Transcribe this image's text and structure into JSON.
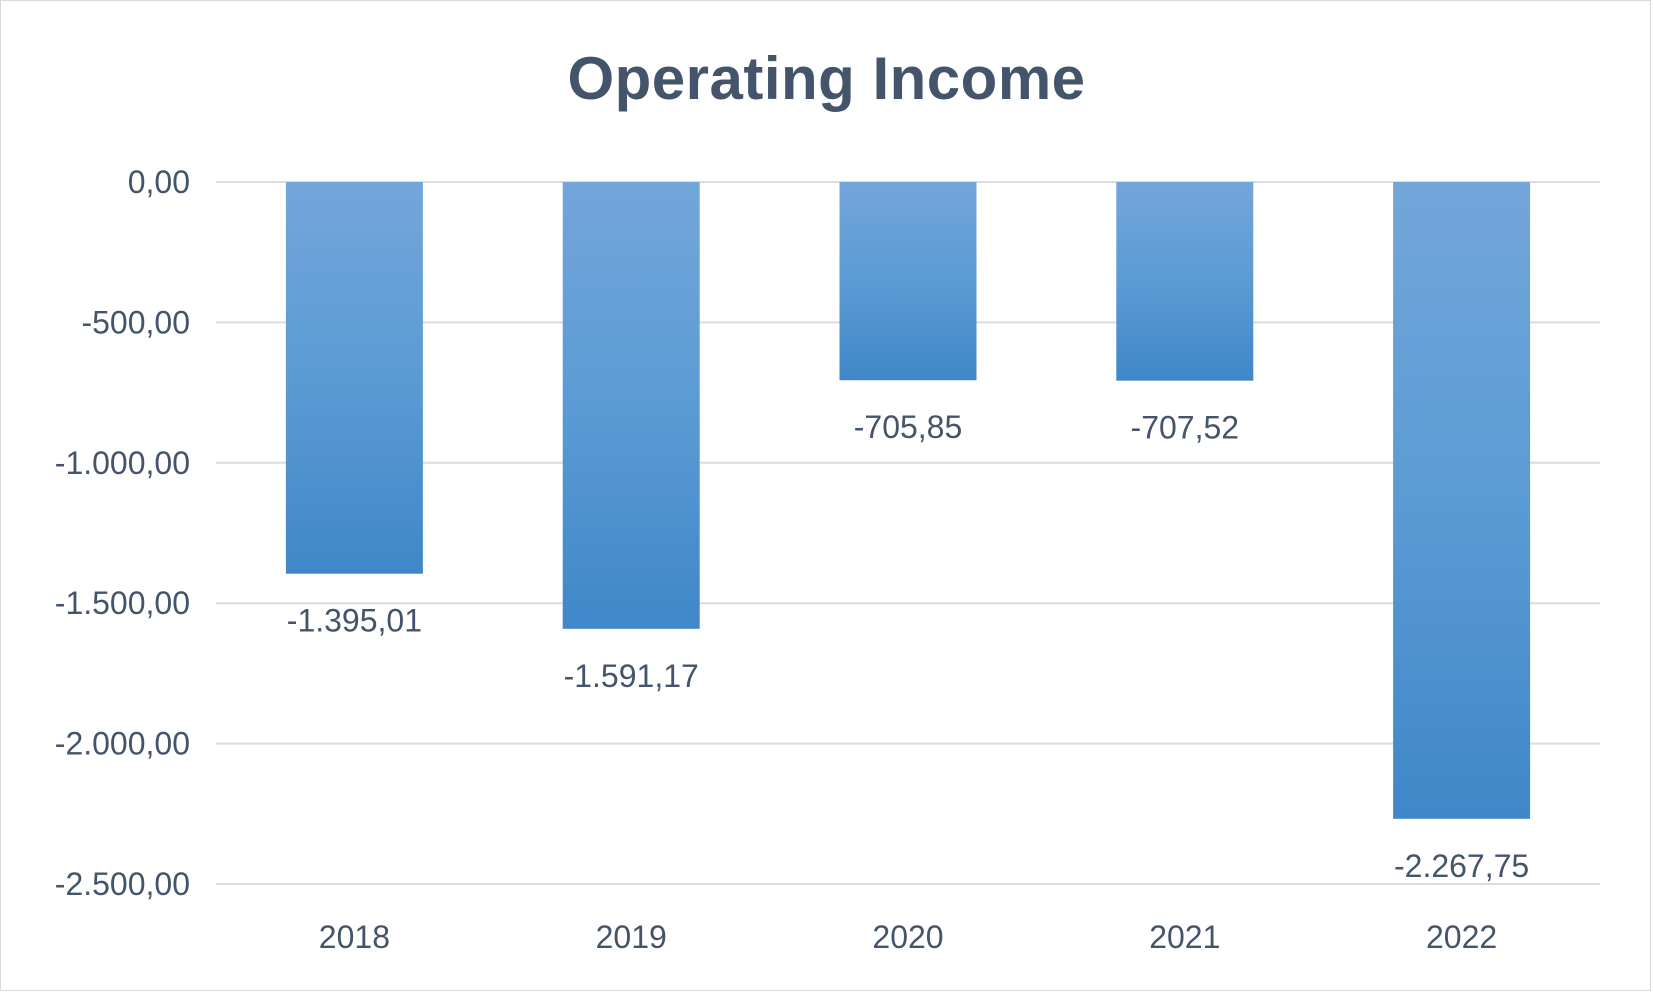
{
  "chart_data": {
    "type": "bar",
    "title": "Operating Income",
    "categories": [
      "2018",
      "2019",
      "2020",
      "2021",
      "2022"
    ],
    "values": [
      -1395.01,
      -1591.17,
      -705.85,
      -707.52,
      -2267.75
    ],
    "data_labels": [
      "-1.395,01",
      "-1.591,17",
      "-705,85",
      "-707,52",
      "-2.267,75"
    ],
    "yticks": [
      0,
      -500,
      -1000,
      -1500,
      -2000,
      -2500
    ],
    "ytick_labels": [
      "0,00",
      "-500,00",
      "-1.000,00",
      "-1.500,00",
      "-2.000,00",
      "-2.500,00"
    ],
    "ylim": [
      -2500,
      0
    ],
    "xlabel": "",
    "ylabel": "",
    "grid": true,
    "legend": "none",
    "colors": {
      "bar_top": "#73a6da",
      "bar_mid": "#5b9bd5",
      "bar_bottom": "#3f87c8",
      "gridline": "#d9dde3",
      "text": "#44546a"
    }
  }
}
